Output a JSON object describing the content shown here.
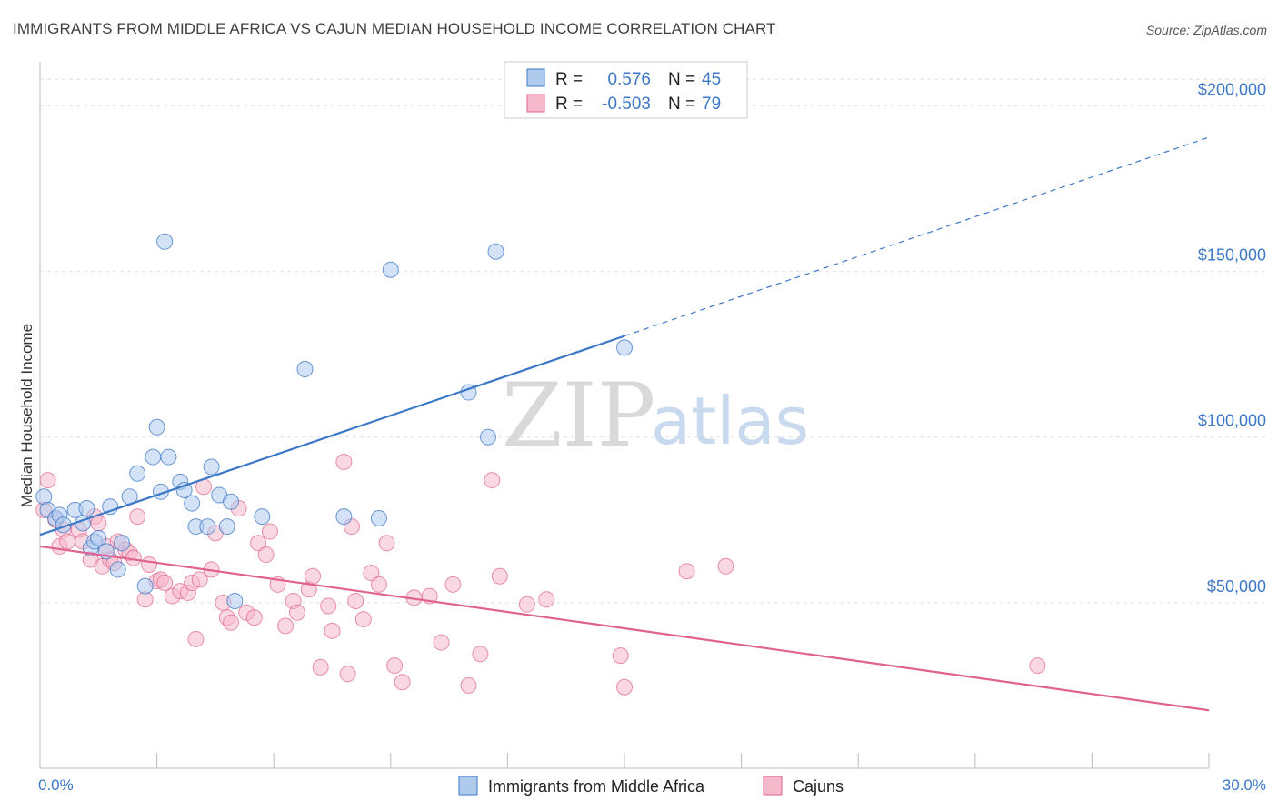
{
  "title": "IMMIGRANTS FROM MIDDLE AFRICA VS CAJUN MEDIAN HOUSEHOLD INCOME CORRELATION CHART",
  "source": "Source: ZipAtlas.com",
  "watermark": {
    "zip": "ZIP",
    "atlas": "atlas"
  },
  "colors": {
    "blue": "#3c78c8",
    "blue_fill": "#aecbee",
    "pink": "#e0628f",
    "pink_fill": "#f6b8cb"
  },
  "chart_data": {
    "type": "scatter",
    "xlabel": "",
    "ylabel": "Median Household Income",
    "xlim": [
      0,
      30
    ],
    "ylim": [
      0,
      210000
    ],
    "x_tick_labels": {
      "left": "0.0%",
      "right": "30.0%"
    },
    "y_ticks": [
      {
        "value": 50000,
        "label": "$50,000"
      },
      {
        "value": 100000,
        "label": "$100,000"
      },
      {
        "value": 150000,
        "label": "$150,000"
      },
      {
        "value": 200000,
        "label": "$200,000"
      }
    ],
    "grid": true,
    "legend": {
      "placement": "top-center",
      "rows": [
        {
          "r_label": "R =",
          "r_value": "0.576",
          "n_label": "N =",
          "n_value": "45"
        },
        {
          "r_label": "R =",
          "r_value": "-0.503",
          "n_label": "N =",
          "n_value": "79"
        }
      ]
    },
    "series": [
      {
        "name": "Immigrants from Middle Africa",
        "color": "#3c78c8",
        "trend": {
          "x0": 0,
          "y0": 70500,
          "x1": 15,
          "y1": 130500,
          "dash_to_x": 30,
          "dash_to_y": 190500
        },
        "points": [
          [
            0.1,
            82000
          ],
          [
            0.2,
            78000
          ],
          [
            0.4,
            75500
          ],
          [
            0.5,
            76500
          ],
          [
            0.6,
            73500
          ],
          [
            0.9,
            78000
          ],
          [
            1.1,
            74000
          ],
          [
            1.2,
            78500
          ],
          [
            1.3,
            66500
          ],
          [
            1.4,
            68500
          ],
          [
            1.5,
            69500
          ],
          [
            1.7,
            65500
          ],
          [
            1.8,
            79000
          ],
          [
            2.0,
            60000
          ],
          [
            2.1,
            68000
          ],
          [
            2.3,
            82000
          ],
          [
            2.5,
            89000
          ],
          [
            2.7,
            55000
          ],
          [
            2.9,
            94000
          ],
          [
            3.0,
            103000
          ],
          [
            3.1,
            83500
          ],
          [
            3.2,
            159000
          ],
          [
            3.3,
            94000
          ],
          [
            3.6,
            86500
          ],
          [
            3.7,
            84000
          ],
          [
            3.9,
            80000
          ],
          [
            4.0,
            73000
          ],
          [
            4.3,
            73000
          ],
          [
            4.4,
            91000
          ],
          [
            4.6,
            82500
          ],
          [
            4.8,
            73000
          ],
          [
            4.9,
            80500
          ],
          [
            5.0,
            50500
          ],
          [
            5.7,
            76000
          ],
          [
            6.8,
            120500
          ],
          [
            7.8,
            76000
          ],
          [
            8.7,
            75500
          ],
          [
            9.0,
            150500
          ],
          [
            11.0,
            113500
          ],
          [
            11.5,
            100000
          ],
          [
            11.7,
            156000
          ],
          [
            15.0,
            127000
          ]
        ]
      },
      {
        "name": "Cajuns",
        "color": "#e0628f",
        "trend": {
          "x0": 0,
          "y0": 67000,
          "x1": 30,
          "y1": 17500
        },
        "points": [
          [
            0.1,
            78000
          ],
          [
            0.2,
            87000
          ],
          [
            0.4,
            75000
          ],
          [
            0.5,
            67000
          ],
          [
            0.6,
            72000
          ],
          [
            0.7,
            68500
          ],
          [
            1.0,
            72000
          ],
          [
            1.1,
            68500
          ],
          [
            1.3,
            63000
          ],
          [
            1.4,
            76000
          ],
          [
            1.5,
            74000
          ],
          [
            1.6,
            61000
          ],
          [
            1.7,
            67000
          ],
          [
            1.8,
            63000
          ],
          [
            1.9,
            62000
          ],
          [
            2.0,
            68500
          ],
          [
            2.2,
            66000
          ],
          [
            2.3,
            65000
          ],
          [
            2.4,
            63500
          ],
          [
            2.5,
            76000
          ],
          [
            2.7,
            51000
          ],
          [
            2.8,
            61500
          ],
          [
            3.0,
            56500
          ],
          [
            3.1,
            57000
          ],
          [
            3.2,
            56000
          ],
          [
            3.4,
            52000
          ],
          [
            3.6,
            53500
          ],
          [
            3.8,
            53000
          ],
          [
            3.9,
            56000
          ],
          [
            4.0,
            39000
          ],
          [
            4.1,
            57000
          ],
          [
            4.2,
            85000
          ],
          [
            4.4,
            60000
          ],
          [
            4.5,
            71000
          ],
          [
            4.7,
            50000
          ],
          [
            4.8,
            45500
          ],
          [
            4.9,
            44000
          ],
          [
            5.1,
            78500
          ],
          [
            5.3,
            47000
          ],
          [
            5.5,
            45500
          ],
          [
            5.6,
            68000
          ],
          [
            5.8,
            64500
          ],
          [
            5.9,
            71500
          ],
          [
            6.1,
            55500
          ],
          [
            6.3,
            43000
          ],
          [
            6.5,
            50500
          ],
          [
            6.6,
            47000
          ],
          [
            6.9,
            54000
          ],
          [
            7.0,
            58000
          ],
          [
            7.2,
            30500
          ],
          [
            7.4,
            49000
          ],
          [
            7.5,
            41500
          ],
          [
            7.8,
            92500
          ],
          [
            7.9,
            28500
          ],
          [
            8.0,
            73000
          ],
          [
            8.1,
            50500
          ],
          [
            8.3,
            45000
          ],
          [
            8.5,
            59000
          ],
          [
            8.7,
            55500
          ],
          [
            8.9,
            68000
          ],
          [
            9.1,
            31000
          ],
          [
            9.3,
            26000
          ],
          [
            9.6,
            51500
          ],
          [
            10.0,
            52000
          ],
          [
            10.3,
            38000
          ],
          [
            10.6,
            55500
          ],
          [
            11.0,
            25000
          ],
          [
            11.3,
            34500
          ],
          [
            11.6,
            87000
          ],
          [
            11.8,
            58000
          ],
          [
            12.5,
            49500
          ],
          [
            13.0,
            51000
          ],
          [
            14.9,
            34000
          ],
          [
            15.0,
            24500
          ],
          [
            16.6,
            59500
          ],
          [
            17.6,
            61000
          ],
          [
            25.6,
            31000
          ]
        ]
      }
    ]
  }
}
